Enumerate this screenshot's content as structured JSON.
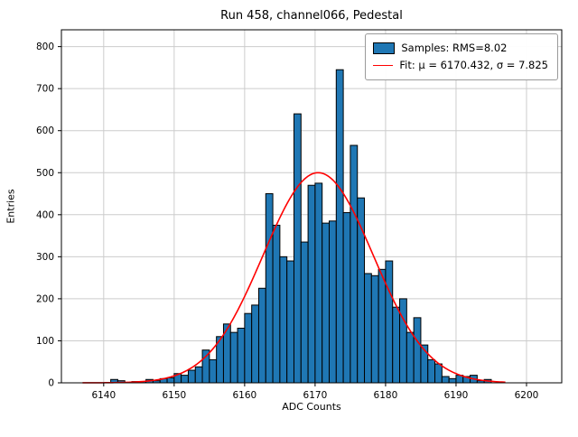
{
  "title": "Run 458, channel066, Pedestal",
  "xlabel": "ADC Counts",
  "ylabel": "Entries",
  "legend": {
    "samples_label": "Samples: RMS=8.02",
    "fit_label": "Fit: μ = 6170.432, σ = 7.825"
  },
  "colors": {
    "bar_fill": "#1f77b4",
    "bar_edge": "#000000",
    "fit_line": "#ff0000",
    "grid": "#cccccc",
    "axes": "#000000"
  },
  "chart_data": {
    "type": "bar",
    "subtype": "histogram-with-gaussian-fit",
    "title": "Run 458, channel066, Pedestal",
    "xlabel": "ADC Counts",
    "ylabel": "Entries",
    "xlim": [
      6134,
      6205
    ],
    "ylim": [
      0,
      840
    ],
    "xticks": [
      6140,
      6150,
      6160,
      6170,
      6180,
      6190,
      6200
    ],
    "yticks": [
      0,
      100,
      200,
      300,
      400,
      500,
      600,
      700,
      800
    ],
    "grid": true,
    "legend_position": "upper right",
    "bin_width": 1,
    "bin_start": 6141,
    "counts": [
      8,
      5,
      0,
      3,
      3,
      8,
      5,
      10,
      12,
      22,
      18,
      30,
      38,
      78,
      55,
      110,
      140,
      120,
      130,
      165,
      185,
      225,
      450,
      375,
      300,
      290,
      640,
      335,
      470,
      475,
      380,
      385,
      745,
      405,
      565,
      440,
      260,
      255,
      270,
      290,
      180,
      200,
      120,
      155,
      90,
      55,
      45,
      15,
      10,
      18,
      15,
      18,
      5,
      8
    ],
    "fit": {
      "mu": 6170.432,
      "sigma": 7.825,
      "amplitude": 500,
      "range": [
        6137,
        6197
      ]
    },
    "series": [
      {
        "name": "Samples: RMS=8.02",
        "style": "histogram"
      },
      {
        "name": "Fit: μ = 6170.432, σ = 7.825",
        "style": "line"
      }
    ]
  }
}
